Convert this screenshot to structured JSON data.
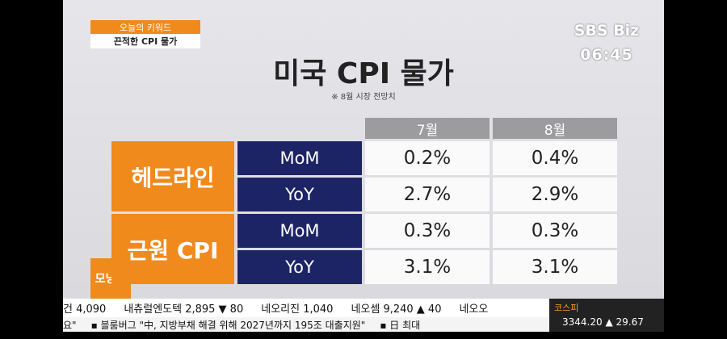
{
  "keyword": {
    "label": "오늘의 키워드",
    "topic": "끈적한 CPI 물가"
  },
  "logo": "SBS Biz",
  "time": "06:45",
  "title": "미국 CPI 물가",
  "note": "※ 8월 시장 전망치",
  "table": {
    "columns": [
      "7월",
      "8월"
    ],
    "groups": [
      {
        "label": "헤드라인",
        "rows": [
          {
            "metric": "MoM",
            "values": [
              "0.2%",
              "0.4%"
            ]
          },
          {
            "metric": "YoY",
            "values": [
              "2.7%",
              "2.9%"
            ]
          }
        ]
      },
      {
        "label": "근원 CPI",
        "rows": [
          {
            "metric": "MoM",
            "values": [
              "0.3%",
              "0.3%"
            ]
          },
          {
            "metric": "YoY",
            "values": [
              "3.1%",
              "3.1%"
            ]
          }
        ]
      }
    ]
  },
  "badge": "모닝벨",
  "ticker": {
    "stocks": [
      "건 4,090",
      "내츄럴엔도텍 2,895 ▼ 80",
      "네오리진 1,040",
      "네오셈 9,240 ▲ 40",
      "네오오"
    ],
    "news": [
      "요\"",
      "▪ 블룸버그 \"中, 지방부채 해결 위해 2027년까지 195조 대출지원\"",
      "▪ 日 최대"
    ],
    "index_name": "코스피",
    "index_value": "3344.20 ▲ 29.67"
  }
}
